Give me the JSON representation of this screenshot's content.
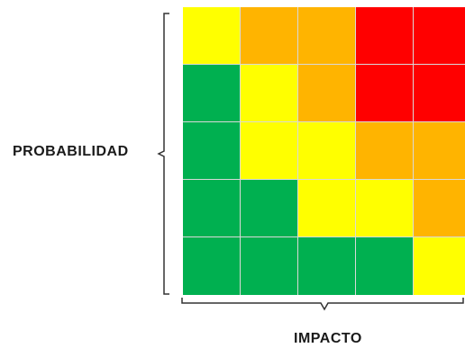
{
  "title": "",
  "axes": {
    "y_label": "PROBABILIDAD",
    "x_label": "IMPACTO"
  },
  "palette": {
    "green": "#00b050",
    "yellow": "#ffff00",
    "orange": "#ffb400",
    "red": "#ff0000",
    "grid_line": "#d9d9d9",
    "bracket": "#333333"
  },
  "matrix": {
    "rows": [
      [
        "yellow",
        "orange",
        "orange",
        "red",
        "red"
      ],
      [
        "green",
        "yellow",
        "orange",
        "red",
        "red"
      ],
      [
        "green",
        "yellow",
        "yellow",
        "orange",
        "orange"
      ],
      [
        "green",
        "green",
        "yellow",
        "yellow",
        "orange"
      ],
      [
        "green",
        "green",
        "green",
        "green",
        "yellow"
      ]
    ]
  }
}
